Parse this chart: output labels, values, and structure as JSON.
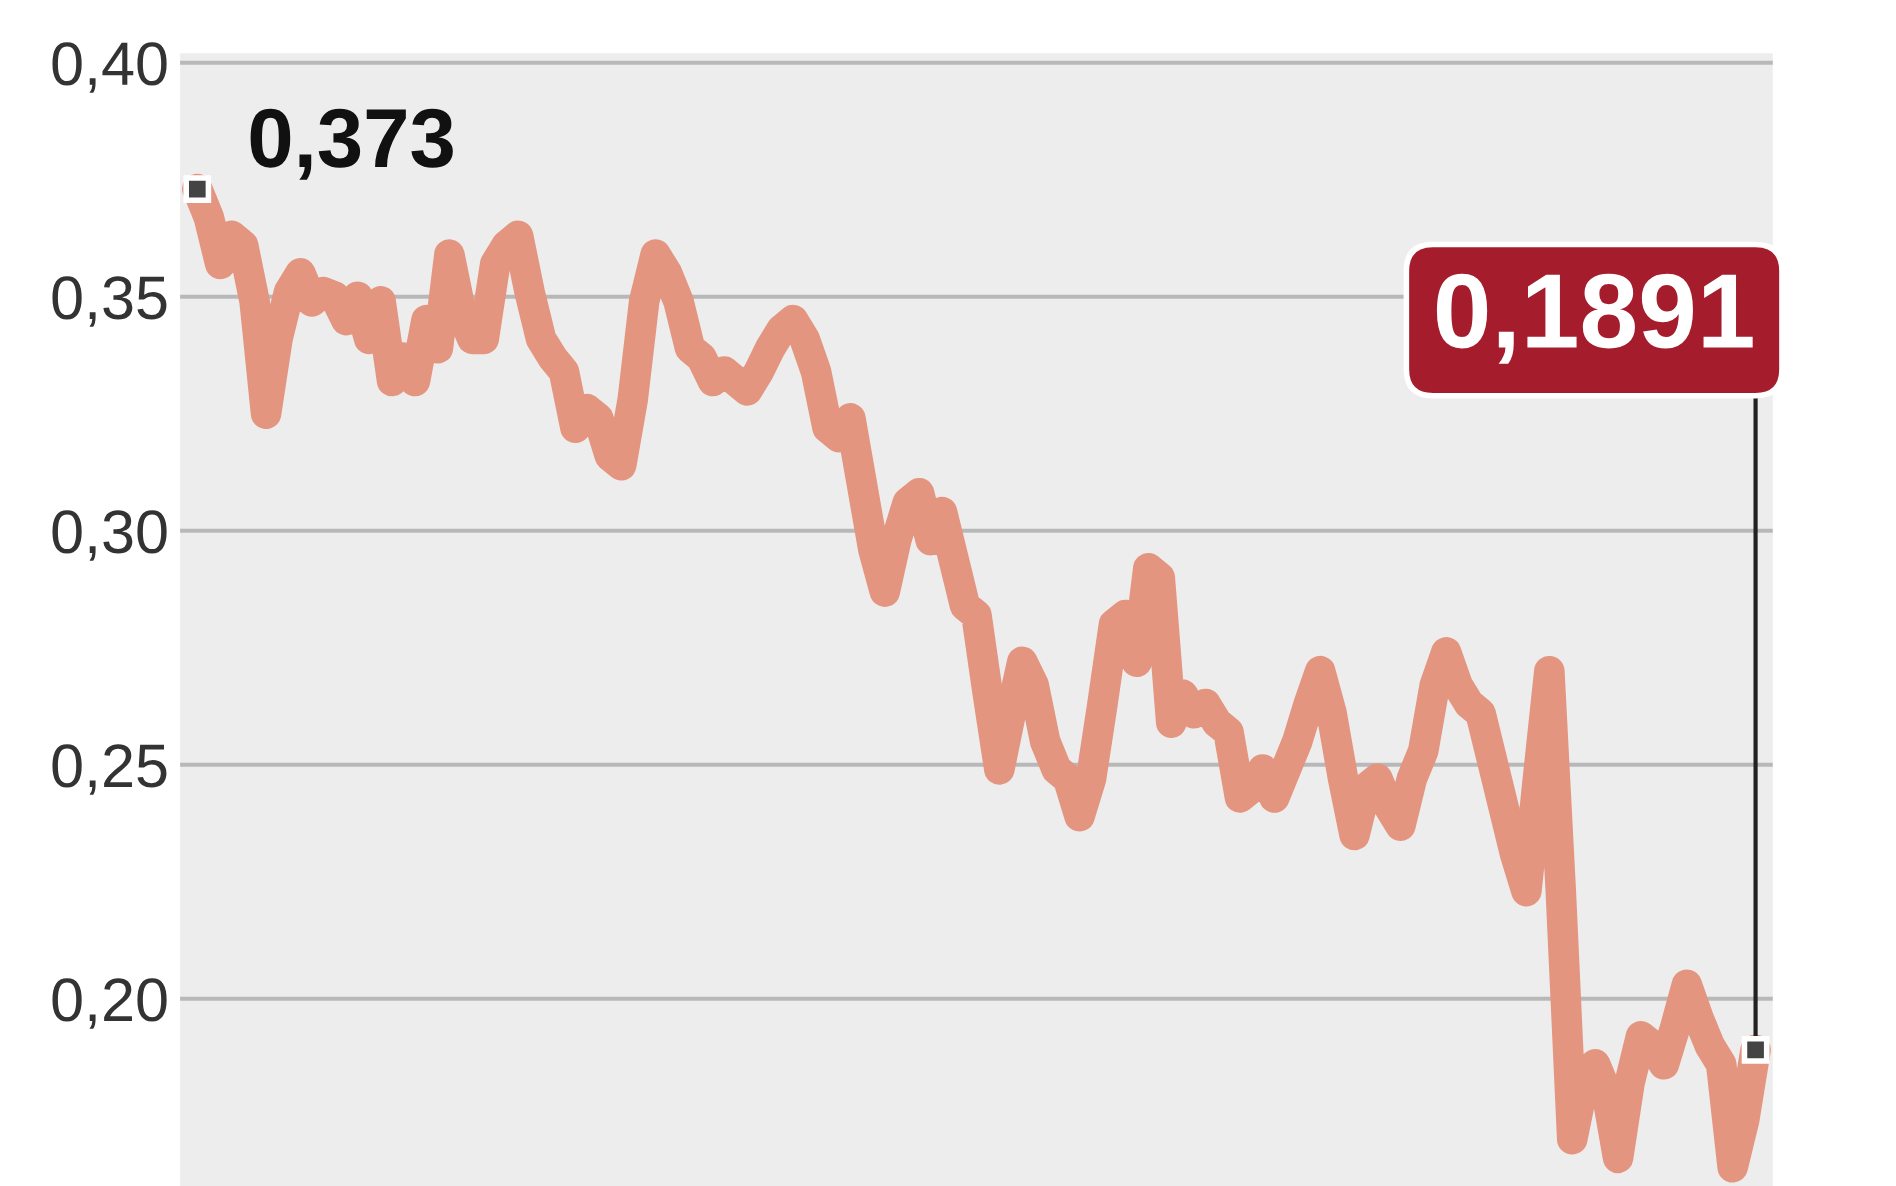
{
  "chart_data": {
    "type": "line",
    "categories": [
      null,
      null,
      null,
      null,
      null,
      null,
      null,
      null,
      null,
      null,
      null,
      null,
      null,
      null,
      null,
      null,
      null,
      null,
      null,
      null,
      null,
      null,
      null,
      null,
      null,
      null,
      null,
      null,
      null,
      null,
      null,
      null,
      null,
      null,
      null,
      null,
      null,
      null,
      null,
      null,
      null,
      null,
      null,
      null,
      null,
      null,
      null,
      null,
      null,
      null,
      null,
      null,
      null,
      null,
      null,
      null,
      null,
      null,
      null,
      null,
      null,
      null,
      null,
      null,
      null,
      null,
      null,
      null,
      null,
      null,
      null,
      null,
      null,
      null,
      null,
      null,
      null,
      null,
      null,
      null,
      null,
      null,
      null,
      null,
      null,
      null,
      null,
      null,
      null,
      null,
      null,
      null,
      null,
      null,
      null,
      null,
      null,
      null,
      null,
      null,
      null,
      null,
      null,
      null,
      null,
      null,
      null,
      null,
      null,
      null,
      null,
      null,
      null,
      null,
      null,
      null,
      null,
      null,
      null,
      null,
      null,
      null,
      null,
      null,
      null,
      null,
      null,
      null,
      null,
      null,
      null,
      null,
      null,
      null,
      null,
      null,
      null
    ],
    "series": [
      {
        "color": "#e39580",
        "values": [
          0.373,
          0.367,
          0.357,
          0.363,
          0.361,
          0.349,
          0.325,
          0.341,
          0.351,
          0.355,
          0.349,
          0.351,
          0.35,
          0.345,
          0.35,
          0.341,
          0.349,
          0.332,
          0.337,
          0.332,
          0.345,
          0.339,
          0.359,
          0.347,
          0.341,
          0.341,
          0.357,
          0.361,
          0.363,
          0.351,
          0.341,
          0.337,
          0.334,
          0.322,
          0.326,
          0.324,
          0.316,
          0.314,
          0.328,
          0.349,
          0.359,
          0.355,
          0.349,
          0.339,
          0.337,
          0.332,
          0.334,
          0.332,
          0.33,
          0.334,
          0.339,
          0.343,
          0.345,
          0.341,
          0.334,
          0.322,
          0.32,
          0.324,
          0.31,
          0.296,
          0.287,
          0.298,
          0.306,
          0.308,
          0.298,
          0.304,
          0.294,
          0.284,
          0.282,
          0.265,
          0.249,
          0.261,
          0.272,
          0.267,
          0.255,
          0.249,
          0.247,
          0.239,
          0.247,
          0.263,
          0.28,
          0.282,
          0.272,
          0.292,
          0.29,
          0.259,
          0.265,
          0.261,
          0.263,
          0.259,
          0.257,
          0.243,
          0.245,
          0.249,
          0.243,
          0.249,
          0.255,
          0.263,
          0.27,
          0.261,
          0.247,
          0.235,
          0.245,
          0.247,
          0.241,
          0.237,
          0.247,
          0.253,
          0.267,
          0.274,
          0.267,
          0.263,
          0.261,
          0.251,
          0.241,
          0.231,
          0.223,
          0.247,
          0.27,
          0.223,
          0.17,
          0.182,
          0.186,
          0.18,
          0.166,
          0.182,
          0.192,
          0.19,
          0.186,
          0.194,
          0.203,
          0.196,
          0.19,
          0.186,
          0.164,
          0.174,
          0.1891
        ]
      }
    ],
    "ylim": [
      0.16,
      0.402
    ],
    "yticks": [
      {
        "value": 0.2,
        "label": "0,20"
      },
      {
        "value": 0.25,
        "label": "0,25"
      },
      {
        "value": 0.3,
        "label": "0,30"
      },
      {
        "value": 0.35,
        "label": "0,35"
      },
      {
        "value": 0.4,
        "label": "0,40"
      }
    ],
    "grid": "y",
    "tick_labels": "y",
    "annotations": [
      "0,373",
      "0,1891"
    ]
  }
}
